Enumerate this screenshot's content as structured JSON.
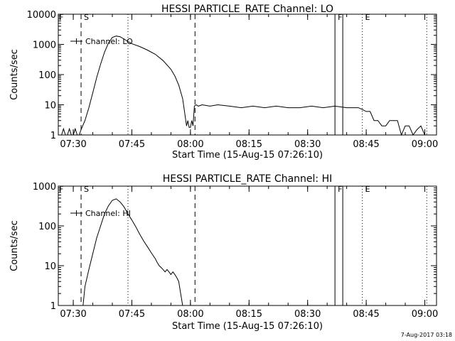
{
  "chart_data": [
    {
      "type": "line",
      "title": "HESSI PARTICLE_RATE Channel: LO",
      "xlabel": "Start Time (15-Aug-15 07:26:10)",
      "ylabel": "Counts/sec",
      "xscale": "time",
      "yscale": "log",
      "xlim": [
        "07:26:10",
        "09:03:00"
      ],
      "ylim": [
        1,
        10000
      ],
      "xticks": [
        "07:30",
        "07:45",
        "08:00",
        "08:15",
        "08:30",
        "08:45",
        "09:00"
      ],
      "yticks": [
        "1",
        "10",
        "100",
        "1000",
        "10000"
      ],
      "legend": "top-left",
      "series": [
        {
          "name": "Channel: LO",
          "x": [
            "07:26:10",
            "07:27:00",
            "07:27:30",
            "07:28:00",
            "07:28:30",
            "07:29:00",
            "07:29:30",
            "07:30:00",
            "07:30:30",
            "07:31:00",
            "07:31:30",
            "07:32:00",
            "07:33:00",
            "07:34:00",
            "07:35:00",
            "07:36:00",
            "07:37:00",
            "07:38:00",
            "07:39:00",
            "07:40:00",
            "07:41:00",
            "07:42:00",
            "07:43:00",
            "07:44:00",
            "07:45:00",
            "07:47:00",
            "07:49:00",
            "07:51:00",
            "07:53:00",
            "07:55:00",
            "07:56:00",
            "07:57:00",
            "07:58:00",
            "07:58:40",
            "07:59:00",
            "07:59:20",
            "07:59:40",
            "08:00:00",
            "08:00:20",
            "08:00:40",
            "08:01:00",
            "08:01:30",
            "08:02:00",
            "08:03:00",
            "08:05:00",
            "08:07:00",
            "08:10:00",
            "08:13:00",
            "08:16:00",
            "08:19:00",
            "08:22:00",
            "08:25:00",
            "08:28:00",
            "08:31:00",
            "08:34:00",
            "08:37:00",
            "08:40:00",
            "08:42:00",
            "08:43:00",
            "08:44:00",
            "08:45:00",
            "08:46:00",
            "08:47:00",
            "08:48:00",
            "08:49:00",
            "08:50:00",
            "08:51:00",
            "08:52:00",
            "08:53:00",
            "08:54:00",
            "08:55:00",
            "08:56:00",
            "08:57:00",
            "08:58:00",
            "08:59:00",
            "09:00:00"
          ],
          "y": [
            1,
            1,
            1.6,
            1,
            1,
            1.6,
            1,
            1,
            1.6,
            1,
            1,
            1.5,
            3,
            8,
            25,
            80,
            220,
            550,
            1100,
            1700,
            1900,
            1800,
            1500,
            1250,
            1050,
            850,
            650,
            470,
            290,
            150,
            90,
            45,
            16,
            4,
            2,
            3,
            1.8,
            1.8,
            3,
            2,
            9,
            10,
            9,
            10,
            9,
            10,
            9,
            8,
            9,
            8,
            9,
            8,
            8,
            9,
            8,
            9,
            8,
            8,
            8,
            7,
            6,
            6,
            3,
            3,
            2,
            2,
            3,
            3,
            3,
            1,
            2,
            2,
            1,
            1.5,
            2,
            1
          ]
        }
      ],
      "vlines": [
        {
          "label": "S",
          "x": "07:32:00",
          "style": "dashed"
        },
        {
          "label": "",
          "x": "07:44:00",
          "style": "dotted"
        },
        {
          "label": "",
          "x": "08:01:10",
          "style": "dashed"
        },
        {
          "label": "F",
          "x": "08:37:00",
          "style": "solid"
        },
        {
          "label": "",
          "x": "08:39:00",
          "style": "solid"
        },
        {
          "label": "E",
          "x": "08:44:00",
          "style": "dotted"
        },
        {
          "label": "",
          "x": "09:00:30",
          "style": "dotted"
        }
      ],
      "corner_marks": [
        "F"
      ]
    },
    {
      "type": "line",
      "title": "HESSI PARTICLE_RATE Channel: HI",
      "xlabel": "Start Time (15-Aug-15 07:26:10)",
      "ylabel": "Counts/sec",
      "xscale": "time",
      "yscale": "log",
      "xlim": [
        "07:26:10",
        "09:03:00"
      ],
      "ylim": [
        1,
        1000
      ],
      "xticks": [
        "07:30",
        "07:45",
        "08:00",
        "08:15",
        "08:30",
        "08:45",
        "09:00"
      ],
      "yticks": [
        "1",
        "10",
        "100",
        "1000"
      ],
      "legend": "top-left",
      "series": [
        {
          "name": "Channel: HI",
          "x": [
            "07:32:30",
            "07:33:00",
            "07:34:00",
            "07:35:00",
            "07:36:00",
            "07:37:00",
            "07:38:00",
            "07:39:00",
            "07:40:00",
            "07:41:00",
            "07:42:00",
            "07:43:00",
            "07:44:00",
            "07:45:00",
            "07:46:00",
            "07:47:00",
            "07:48:00",
            "07:49:00",
            "07:50:00",
            "07:51:00",
            "07:51:30",
            "07:52:00",
            "07:52:30",
            "07:53:00",
            "07:53:30",
            "07:54:00",
            "07:54:30",
            "07:55:00",
            "07:55:30",
            "07:56:00",
            "07:56:30",
            "07:57:00",
            "07:57:30",
            "07:58:00"
          ],
          "y": [
            1,
            3,
            8,
            20,
            50,
            100,
            200,
            320,
            440,
            480,
            400,
            300,
            200,
            140,
            95,
            62,
            42,
            30,
            21,
            15,
            12,
            10,
            9,
            8,
            7,
            8,
            7,
            6,
            7,
            6,
            5,
            4,
            2,
            1
          ]
        }
      ],
      "vlines": [
        {
          "label": "S",
          "x": "07:32:00",
          "style": "dashed"
        },
        {
          "label": "",
          "x": "07:44:00",
          "style": "dotted"
        },
        {
          "label": "",
          "x": "08:01:10",
          "style": "dashed"
        },
        {
          "label": "F",
          "x": "08:37:00",
          "style": "solid"
        },
        {
          "label": "",
          "x": "08:39:00",
          "style": "solid"
        },
        {
          "label": "E",
          "x": "08:44:00",
          "style": "dotted"
        },
        {
          "label": "",
          "x": "09:00:30",
          "style": "dotted"
        }
      ],
      "corner_marks": [
        "F"
      ]
    }
  ],
  "footer": {
    "stamp": "7-Aug-2017 03:18"
  }
}
